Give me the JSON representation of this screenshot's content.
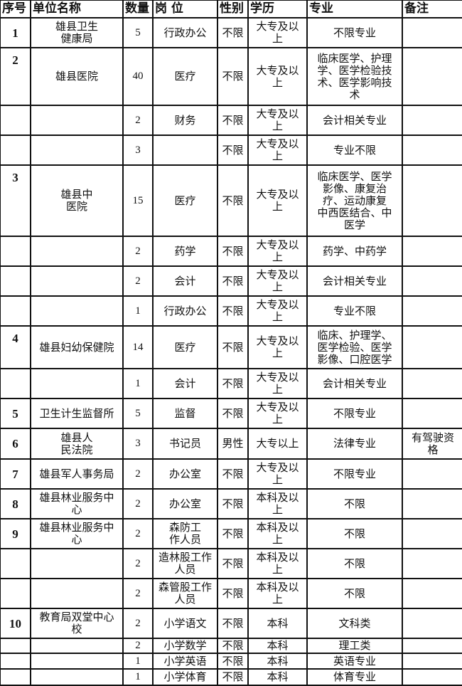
{
  "headers": [
    "序号",
    "单位名称",
    "数量",
    "岗 位",
    "性别",
    "学历",
    "专业",
    "备注"
  ],
  "rows": [
    {
      "idx": "1",
      "unit": "雄县卫生\n健康局",
      "count": "5",
      "post": "行政办公",
      "gender": "不限",
      "edu": "大专及以\n上",
      "major": "不限专业",
      "note": ""
    },
    {
      "idx": "2",
      "unit": "雄县医院",
      "count": "40",
      "post": "医疗",
      "gender": "不限",
      "edu": "大专及以\n上",
      "major": "临床医学、护理\n学、医学检验技\n术、医学影响技\n术",
      "note": ""
    },
    {
      "idx": "",
      "unit": "",
      "count": "2",
      "post": "财务",
      "gender": "不限",
      "edu": "大专及以\n上",
      "major": "会计相关专业",
      "note": ""
    },
    {
      "idx": "",
      "unit": "",
      "count": "3",
      "post": "",
      "gender": "不限",
      "edu": "大专及以\n上",
      "major": "专业不限",
      "note": ""
    },
    {
      "idx": "3",
      "unit": "雄县中\n医院",
      "count": "15",
      "post": "医疗",
      "gender": "不限",
      "edu": "大专及以\n上",
      "major": "临床医学、医学\n影像、康复治\n疗、运动康复\n中西医结合、中\n医学",
      "note": ""
    },
    {
      "idx": "",
      "unit": "",
      "count": "2",
      "post": "药学",
      "gender": "不限",
      "edu": "大专及以\n上",
      "major": "药学、中药学",
      "note": ""
    },
    {
      "idx": "",
      "unit": "",
      "count": "2",
      "post": "会计",
      "gender": "不限",
      "edu": "大专及以\n上",
      "major": "会计相关专业",
      "note": ""
    },
    {
      "idx": "",
      "unit": "",
      "count": "1",
      "post": "行政办公",
      "gender": "不限",
      "edu": "大专及以\n上",
      "major": "专业不限",
      "note": ""
    },
    {
      "idx": "4",
      "unit": "雄县妇幼保健院",
      "count": "14",
      "post": "医疗",
      "gender": "不限",
      "edu": "大专及以\n上",
      "major": "临床、护理学、\n医学检验、医学\n影像、口腔医学",
      "note": ""
    },
    {
      "idx": "",
      "unit": "",
      "count": "1",
      "post": "会计",
      "gender": "不限",
      "edu": "大专及以\n上",
      "major": "会计相关专业",
      "note": ""
    },
    {
      "idx": "5",
      "unit": "卫生计生监督所",
      "count": "5",
      "post": "监督",
      "gender": "不限",
      "edu": "大专及以\n上",
      "major": "不限专业",
      "note": ""
    },
    {
      "idx": "6",
      "unit": "雄县人\n民法院",
      "count": "3",
      "post": "书记员",
      "gender": "男性",
      "edu": "大专以上",
      "major": "法律专业",
      "note": "有驾驶资\n格"
    },
    {
      "idx": "7",
      "unit": "雄县军人事务局",
      "count": "2",
      "post": "办公室",
      "gender": "不限",
      "edu": "大专及以\n上",
      "major": "不限专业",
      "note": ""
    },
    {
      "idx": "8",
      "unit": "雄县林业服务中\n心",
      "count": "2",
      "post": "办公室",
      "gender": "不限",
      "edu": "本科及以\n上",
      "major": "不限",
      "note": ""
    },
    {
      "idx": "9",
      "unit": "雄县林业服务中\n心",
      "count": "2",
      "post": "森防工\n作人员",
      "gender": "不限",
      "edu": "本科及以\n上",
      "major": "不限",
      "note": ""
    },
    {
      "idx": "",
      "unit": "",
      "count": "2",
      "post": "造林股工作\n人员",
      "gender": "不限",
      "edu": "本科及以\n上",
      "major": "不限",
      "note": ""
    },
    {
      "idx": "",
      "unit": "",
      "count": "2",
      "post": "森管股工作\n人员",
      "gender": "不限",
      "edu": "本科及以\n上",
      "major": "不限",
      "note": ""
    },
    {
      "idx": "10",
      "unit": "教育局双堂中心\n校",
      "count": "2",
      "post": "小学语文",
      "gender": "不限",
      "edu": "本科",
      "major": "文科类",
      "note": ""
    },
    {
      "idx": "",
      "unit": "",
      "count": "2",
      "post": "小学数学",
      "gender": "不限",
      "edu": "本科",
      "major": "理工类",
      "note": ""
    },
    {
      "idx": "",
      "unit": "",
      "count": "1",
      "post": "小学英语",
      "gender": "不限",
      "edu": "本科",
      "major": "英语专业",
      "note": ""
    },
    {
      "idx": "",
      "unit": "",
      "count": "1",
      "post": "小学体育",
      "gender": "不限",
      "edu": "本科",
      "major": "体育专业",
      "note": ""
    }
  ]
}
